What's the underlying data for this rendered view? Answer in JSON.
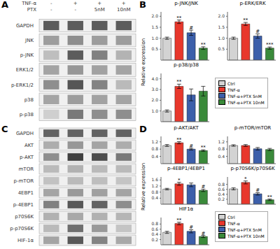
{
  "chart_data": [
    {
      "type": "heatmap",
      "title": "A",
      "column_headers": [
        {
          "label": "TNF-α",
          "values": [
            "-",
            "+",
            "+",
            "+"
          ]
        },
        {
          "label": "PTX",
          "values": [
            "-",
            "-",
            "5nM",
            "10nM"
          ]
        }
      ],
      "rows": [
        "GAPDH",
        "JNK",
        "p-JNK",
        "ERK1/2",
        "p-ERK1/2",
        "p38",
        "p-p38"
      ],
      "cells": [
        [
          0.75,
          0.75,
          0.75,
          0.75
        ],
        [
          0.45,
          0.52,
          0.45,
          0.45
        ],
        [
          0.3,
          0.75,
          0.58,
          0.35
        ],
        [
          0.42,
          0.48,
          0.43,
          0.42
        ],
        [
          0.52,
          0.78,
          0.57,
          0.32
        ],
        [
          0.42,
          0.45,
          0.43,
          0.42
        ],
        [
          0.22,
          0.62,
          0.52,
          0.52
        ]
      ]
    },
    {
      "type": "bar",
      "title": "B",
      "ylabel": "Relative expression",
      "categories": [
        "Ctrl",
        "TNF-α",
        "TNF-α+PTX 5nM",
        "TNF-α+PTX 10nM"
      ],
      "colors": [
        "#d3d3d3",
        "#e8372c",
        "#3c5faa",
        "#3a8a3a"
      ],
      "legend": "right",
      "tick_labels": "y",
      "charts": [
        {
          "title": "p-JNK/JNK",
          "values": [
            1.0,
            1.75,
            1.25,
            0.55
          ],
          "errors": [
            0.05,
            0.08,
            0.12,
            0.06
          ],
          "ylim": [
            0,
            2.2
          ],
          "yticks": [
            0.5,
            {
              "value": 1.0,
              "label": "1.0"
            },
            1.5,
            {
              "value": 2.0,
              "label": "2.0"
            }
          ],
          "annotations": [
            null,
            "**",
            "#",
            "**"
          ]
        },
        {
          "title": "p-ERK/ERK",
          "values": [
            1.0,
            1.65,
            1.1,
            0.55
          ],
          "errors": [
            0.05,
            0.07,
            0.1,
            0.05
          ],
          "ylim": [
            0,
            2.2
          ],
          "yticks": [
            0.5,
            {
              "value": 1.0,
              "label": "1.0"
            },
            1.5,
            {
              "value": 2.0,
              "label": "2.0"
            }
          ],
          "annotations": [
            null,
            "**",
            "#",
            "***"
          ]
        },
        {
          "title": "p-p38/p38",
          "values": [
            1.0,
            3.3,
            2.5,
            2.85
          ],
          "errors": [
            0.1,
            0.2,
            0.55,
            0.45
          ],
          "ylim": [
            0,
            4.5
          ],
          "yticks": [
            {
              "value": 1,
              "label": "1.0"
            },
            {
              "value": 2,
              "label": "2.0"
            },
            {
              "value": 3,
              "label": "3.0"
            },
            {
              "value": 4,
              "label": "4.0"
            }
          ],
          "annotations": [
            null,
            "**",
            null,
            null
          ]
        }
      ]
    },
    {
      "type": "heatmap",
      "title": "C",
      "rows": [
        "GAPDH",
        "AKT",
        "p-AKT",
        "mTOR",
        "p-mTOR",
        "4EBP1",
        "p-4EBP1",
        "p70S6K",
        "p-p70S6K",
        "HIF-1α"
      ],
      "cells": [
        [
          0.72,
          0.72,
          0.72,
          0.72
        ],
        [
          0.38,
          0.48,
          0.42,
          0.38
        ],
        [
          0.52,
          0.88,
          0.82,
          0.62
        ],
        [
          0.32,
          0.36,
          0.32,
          0.32
        ],
        [
          0.28,
          0.32,
          0.3,
          0.27
        ],
        [
          0.42,
          0.47,
          0.44,
          0.42
        ],
        [
          0.58,
          0.77,
          0.72,
          0.52
        ],
        [
          0.36,
          0.4,
          0.36,
          0.34
        ],
        [
          0.32,
          0.67,
          0.47,
          0.27
        ],
        [
          0.42,
          0.77,
          0.57,
          0.4
        ]
      ]
    },
    {
      "type": "bar",
      "title": "D",
      "ylabel": "Relative expression",
      "categories": [
        "Ctrl",
        "TNF-α",
        "TNF-α+PTX 5nM",
        "TNF-α+PTX 10nM"
      ],
      "colors": [
        "#d3d3d3",
        "#e8372c",
        "#3c5faa",
        "#3a8a3a"
      ],
      "legend": "right",
      "tick_labels": "y",
      "charts": [
        {
          "title": "p-AKT/AKT",
          "values": [
            1.0,
            1.15,
            0.8,
            0.72
          ],
          "errors": [
            0.05,
            0.06,
            0.05,
            0.04
          ],
          "ylim": [
            0,
            1.5
          ],
          "yticks": [
            0.4,
            0.8,
            1.2
          ],
          "annotations": [
            null,
            "**",
            "#",
            "**"
          ]
        },
        {
          "title": "p-mTOR/mTOR",
          "values": [
            1.0,
            1.0,
            0.82,
            0.78
          ],
          "errors": [
            0.04,
            0.05,
            0.07,
            0.06
          ],
          "ylim": [
            0,
            1.5
          ],
          "yticks": [
            0.4,
            0.8,
            1.2
          ],
          "annotations": [
            null,
            null,
            null,
            null
          ]
        },
        {
          "title": "p-4EBP1/4EBP1",
          "values": [
            1.0,
            1.35,
            1.28,
            0.92
          ],
          "errors": [
            0.05,
            0.1,
            0.12,
            0.08
          ],
          "ylim": [
            0,
            1.8
          ],
          "yticks": [
            0.4,
            0.8,
            1.2,
            1.6
          ],
          "annotations": [
            null,
            "*",
            null,
            "#"
          ]
        },
        {
          "title": "p-p70S6K/p70S6K",
          "values": [
            0.62,
            0.88,
            0.42,
            0.18
          ],
          "errors": [
            0.04,
            0.06,
            0.05,
            0.03
          ],
          "ylim": [
            0,
            1.1
          ],
          "yticks": [
            0.2,
            0.4,
            0.6,
            0.8
          ],
          "annotations": [
            null,
            "*",
            "#",
            "**"
          ]
        },
        {
          "title": "HIF1α",
          "values": [
            0.48,
            0.82,
            0.52,
            0.32
          ],
          "errors": [
            0.04,
            0.05,
            0.06,
            0.04
          ],
          "ylim": [
            0,
            1.05
          ],
          "yticks": [
            0.2,
            0.4,
            0.6,
            0.8
          ],
          "annotations": [
            null,
            "**",
            "#",
            "#"
          ]
        }
      ]
    }
  ]
}
